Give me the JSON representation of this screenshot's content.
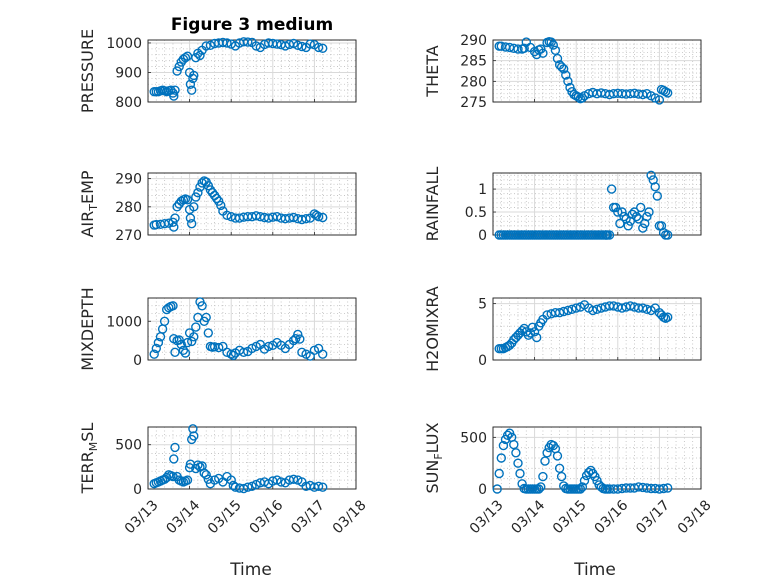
{
  "figure_title": "Figure 3 medium",
  "x_axis_label": "Time",
  "x_ticks": [
    "03/13",
    "03/14",
    "03/15",
    "03/16",
    "03/17",
    "03/18"
  ],
  "marker_color": "#0072BD",
  "chart_data": [
    {
      "type": "scatter",
      "name": "pressure",
      "ylabel_main": "PRESSURE",
      "ylabel_sub": "",
      "ylabel_tail": "",
      "xlim": [
        13.0,
        18.0
      ],
      "ylim": [
        800,
        1010
      ],
      "yticks": [
        800,
        900,
        1000
      ],
      "ytick_labels": [
        "800",
        "900",
        "1000"
      ],
      "x": [
        13.15,
        13.2,
        13.25,
        13.3,
        13.35,
        13.4,
        13.45,
        13.5,
        13.55,
        13.6,
        13.62,
        13.65,
        13.7,
        13.75,
        13.8,
        13.85,
        13.9,
        13.95,
        14.0,
        14.02,
        14.05,
        14.08,
        14.1,
        14.15,
        14.2,
        14.25,
        14.3,
        14.4,
        14.5,
        14.6,
        14.7,
        14.8,
        14.9,
        15.0,
        15.1,
        15.2,
        15.3,
        15.4,
        15.5,
        15.6,
        15.7,
        15.8,
        15.9,
        16.0,
        16.1,
        16.2,
        16.3,
        16.4,
        16.5,
        16.6,
        16.7,
        16.8,
        16.9,
        17.0,
        17.1,
        17.2
      ],
      "y": [
        835,
        835,
        835,
        838,
        840,
        838,
        835,
        838,
        840,
        830,
        820,
        840,
        905,
        920,
        935,
        945,
        950,
        955,
        900,
        860,
        840,
        880,
        890,
        950,
        965,
        958,
        975,
        990,
        992,
        998,
        1000,
        1002,
        1000,
        996,
        990,
        1000,
        1004,
        1003,
        1002,
        990,
        985,
        995,
        1000,
        998,
        996,
        994,
        990,
        995,
        998,
        992,
        988,
        985,
        996,
        994,
        985,
        982
      ]
    },
    {
      "type": "scatter",
      "name": "theta",
      "ylabel_main": "THETA",
      "ylabel_sub": "",
      "ylabel_tail": "",
      "xlim": [
        13.0,
        18.0
      ],
      "ylim": [
        275,
        290
      ],
      "yticks": [
        275,
        280,
        285,
        290
      ],
      "ytick_labels": [
        "275",
        "280",
        "285",
        "290"
      ],
      "x": [
        13.15,
        13.2,
        13.3,
        13.4,
        13.5,
        13.6,
        13.7,
        13.75,
        13.8,
        13.9,
        14.0,
        14.05,
        14.1,
        14.15,
        14.2,
        14.3,
        14.35,
        14.4,
        14.45,
        14.5,
        14.55,
        14.6,
        14.65,
        14.7,
        14.75,
        14.8,
        14.85,
        14.9,
        14.95,
        15.0,
        15.05,
        15.1,
        15.15,
        15.2,
        15.3,
        15.4,
        15.5,
        15.6,
        15.7,
        15.8,
        15.9,
        16.0,
        16.1,
        16.2,
        16.3,
        16.4,
        16.5,
        16.6,
        16.7,
        16.8,
        16.9,
        17.0,
        17.05,
        17.1,
        17.15,
        17.2
      ],
      "y": [
        288.5,
        288.5,
        288.3,
        288.2,
        288.0,
        287.8,
        287.8,
        288.0,
        289.5,
        288.2,
        287.2,
        286.5,
        287.6,
        287.8,
        286.8,
        289.4,
        289.6,
        289.5,
        288.8,
        287.5,
        285.5,
        284.0,
        283.5,
        283.0,
        281.5,
        280.0,
        278.5,
        277.5,
        276.8,
        276.5,
        276.2,
        275.8,
        276.0,
        276.5,
        277.0,
        277.3,
        277.0,
        277.2,
        277.0,
        276.8,
        277.0,
        277.1,
        277.0,
        276.9,
        277.0,
        277.1,
        276.9,
        276.8,
        277.0,
        276.5,
        276.0,
        275.5,
        278.0,
        277.8,
        277.5,
        277.2
      ]
    },
    {
      "type": "scatter",
      "name": "air_temp",
      "ylabel_main": "AIR",
      "ylabel_sub": "T",
      "ylabel_tail": "EMP",
      "xlim": [
        13.0,
        18.0
      ],
      "ylim": [
        270,
        292
      ],
      "yticks": [
        270,
        280,
        290
      ],
      "ytick_labels": [
        "270",
        "280",
        "290"
      ],
      "x": [
        13.15,
        13.2,
        13.3,
        13.4,
        13.5,
        13.6,
        13.62,
        13.65,
        13.7,
        13.75,
        13.8,
        13.85,
        13.9,
        13.95,
        14.0,
        14.02,
        14.05,
        14.1,
        14.15,
        14.2,
        14.25,
        14.3,
        14.35,
        14.4,
        14.45,
        14.5,
        14.55,
        14.6,
        14.65,
        14.7,
        14.75,
        14.8,
        14.9,
        15.0,
        15.1,
        15.2,
        15.3,
        15.4,
        15.5,
        15.6,
        15.7,
        15.8,
        15.9,
        16.0,
        16.1,
        16.2,
        16.3,
        16.4,
        16.5,
        16.6,
        16.7,
        16.8,
        16.9,
        17.0,
        17.05,
        17.1,
        17.2
      ],
      "y": [
        273.5,
        273.7,
        273.8,
        274.0,
        274.2,
        274.5,
        272.8,
        276.0,
        280.0,
        281.0,
        282.0,
        282.5,
        282.8,
        282.5,
        279.0,
        276.0,
        274.0,
        280.0,
        283.5,
        285.0,
        287.0,
        288.5,
        289.2,
        288.8,
        287.5,
        286.0,
        285.0,
        284.0,
        283.0,
        282.0,
        280.5,
        278.5,
        277.0,
        276.5,
        276.0,
        276.0,
        276.3,
        276.5,
        276.5,
        276.8,
        276.5,
        276.2,
        276.0,
        276.3,
        276.5,
        276.0,
        275.8,
        276.0,
        276.2,
        275.8,
        275.5,
        275.8,
        276.0,
        277.5,
        277.0,
        276.5,
        276.2
      ]
    },
    {
      "type": "scatter",
      "name": "rainfall",
      "ylabel_main": "RAINFALL",
      "ylabel_sub": "",
      "ylabel_tail": "",
      "xlim": [
        13.0,
        18.0
      ],
      "ylim": [
        0,
        1.35
      ],
      "yticks": [
        0,
        0.5,
        1
      ],
      "ytick_labels": [
        "0",
        "0.5",
        "1"
      ],
      "x": [
        13.15,
        13.2,
        13.25,
        13.3,
        13.35,
        13.4,
        13.45,
        13.5,
        13.55,
        13.6,
        13.65,
        13.7,
        13.75,
        13.8,
        13.85,
        13.9,
        13.95,
        14.0,
        14.05,
        14.1,
        14.15,
        14.2,
        14.25,
        14.3,
        14.35,
        14.4,
        14.45,
        14.5,
        14.55,
        14.6,
        14.65,
        14.7,
        14.75,
        14.8,
        14.85,
        14.9,
        14.95,
        15.0,
        15.05,
        15.1,
        15.15,
        15.2,
        15.25,
        15.3,
        15.35,
        15.4,
        15.45,
        15.5,
        15.55,
        15.6,
        15.65,
        15.7,
        15.72,
        15.75,
        15.8,
        15.85,
        15.9,
        15.95,
        16.0,
        16.05,
        16.1,
        16.15,
        16.2,
        16.25,
        16.3,
        16.35,
        16.4,
        16.45,
        16.5,
        16.55,
        16.6,
        16.65,
        16.7,
        16.75,
        16.8,
        16.85,
        16.9,
        16.95,
        17.0,
        17.05,
        17.1,
        17.15,
        17.2
      ],
      "y": [
        0,
        0,
        0,
        0,
        0,
        0,
        0,
        0,
        0,
        0,
        0,
        0,
        0,
        0,
        0,
        0,
        0,
        0,
        0,
        0,
        0,
        0,
        0,
        0,
        0,
        0,
        0,
        0,
        0,
        0,
        0,
        0,
        0,
        0,
        0,
        0,
        0,
        0,
        0,
        0,
        0,
        0,
        0,
        0,
        0,
        0,
        0,
        0,
        0,
        0,
        0,
        0,
        0,
        0,
        0,
        1.0,
        0.6,
        0.6,
        0.5,
        0.25,
        0.5,
        0.4,
        0.35,
        0.2,
        0.3,
        0.45,
        0.5,
        0.4,
        0.35,
        0.6,
        0.15,
        0.25,
        0.4,
        0.5,
        1.3,
        1.2,
        1.05,
        0.85,
        0.2,
        0.2,
        0.05,
        0.0,
        0.0
      ]
    },
    {
      "type": "scatter",
      "name": "mixdepth",
      "ylabel_main": "MIXDEPTH",
      "ylabel_sub": "",
      "ylabel_tail": "",
      "xlim": [
        13.0,
        18.0
      ],
      "ylim": [
        0,
        1600
      ],
      "yticks": [
        0,
        1000
      ],
      "ytick_labels": [
        "0",
        "1000"
      ],
      "x": [
        13.15,
        13.2,
        13.25,
        13.3,
        13.35,
        13.4,
        13.45,
        13.5,
        13.55,
        13.6,
        13.62,
        13.65,
        13.7,
        13.75,
        13.8,
        13.85,
        13.9,
        13.95,
        14.0,
        14.05,
        14.1,
        14.15,
        14.2,
        14.25,
        14.3,
        14.35,
        14.4,
        14.45,
        14.5,
        14.55,
        14.6,
        14.7,
        14.8,
        14.9,
        15.0,
        15.05,
        15.1,
        15.2,
        15.3,
        15.4,
        15.5,
        15.6,
        15.7,
        15.8,
        15.9,
        16.0,
        16.1,
        16.2,
        16.3,
        16.4,
        16.5,
        16.55,
        16.6,
        16.65,
        16.7,
        16.8,
        16.9,
        17.0,
        17.1,
        17.2
      ],
      "y": [
        150,
        300,
        450,
        600,
        800,
        1000,
        1300,
        1350,
        1380,
        1400,
        550,
        200,
        500,
        520,
        400,
        250,
        180,
        450,
        700,
        480,
        600,
        850,
        1100,
        1500,
        1400,
        1000,
        1100,
        700,
        350,
        330,
        340,
        320,
        350,
        200,
        150,
        120,
        180,
        250,
        200,
        220,
        300,
        350,
        400,
        280,
        350,
        380,
        450,
        380,
        300,
        400,
        500,
        550,
        660,
        540,
        200,
        150,
        100,
        250,
        300,
        150
      ]
    },
    {
      "type": "scatter",
      "name": "h2omixra",
      "ylabel_main": "H2OMIXRA",
      "ylabel_sub": "",
      "ylabel_tail": "",
      "xlim": [
        13.0,
        18.0
      ],
      "ylim": [
        0,
        5.5
      ],
      "yticks": [
        0,
        5
      ],
      "ytick_labels": [
        "0",
        "5"
      ],
      "x": [
        13.15,
        13.2,
        13.25,
        13.3,
        13.35,
        13.4,
        13.45,
        13.5,
        13.55,
        13.6,
        13.65,
        13.7,
        13.75,
        13.8,
        13.85,
        13.9,
        13.95,
        14.0,
        14.05,
        14.1,
        14.15,
        14.2,
        14.3,
        14.4,
        14.5,
        14.6,
        14.7,
        14.8,
        14.9,
        15.0,
        15.1,
        15.2,
        15.3,
        15.4,
        15.5,
        15.6,
        15.7,
        15.8,
        15.9,
        16.0,
        16.1,
        16.2,
        16.3,
        16.4,
        16.5,
        16.6,
        16.7,
        16.8,
        16.9,
        17.0,
        17.05,
        17.1,
        17.15,
        17.2
      ],
      "y": [
        1.0,
        1.0,
        1.0,
        1.1,
        1.2,
        1.3,
        1.5,
        1.8,
        2.0,
        2.2,
        2.4,
        2.6,
        2.8,
        2.5,
        2.2,
        2.4,
        2.9,
        2.5,
        2.0,
        3.0,
        3.3,
        3.6,
        4.0,
        4.1,
        4.2,
        4.2,
        4.3,
        4.4,
        4.5,
        4.6,
        4.7,
        4.9,
        4.6,
        4.4,
        4.5,
        4.6,
        4.7,
        4.8,
        4.8,
        4.7,
        4.6,
        4.7,
        4.8,
        4.7,
        4.6,
        4.6,
        4.5,
        4.4,
        4.6,
        4.2,
        4.0,
        3.8,
        3.7,
        3.8
      ]
    },
    {
      "type": "scatter",
      "name": "terr_msl",
      "ylabel_main": "TERR",
      "ylabel_sub": "M",
      "ylabel_tail": "SL",
      "xlim": [
        13.0,
        18.0
      ],
      "ylim": [
        0,
        700
      ],
      "yticks": [
        0,
        500
      ],
      "ytick_labels": [
        "0",
        "500"
      ],
      "x": [
        13.15,
        13.2,
        13.25,
        13.3,
        13.35,
        13.4,
        13.45,
        13.5,
        13.55,
        13.6,
        13.62,
        13.65,
        13.7,
        13.75,
        13.8,
        13.85,
        13.9,
        13.95,
        14.0,
        14.02,
        14.05,
        14.08,
        14.1,
        14.15,
        14.2,
        14.25,
        14.3,
        14.35,
        14.4,
        14.45,
        14.5,
        14.6,
        14.7,
        14.8,
        14.9,
        15.0,
        15.05,
        15.1,
        15.2,
        15.3,
        15.4,
        15.5,
        15.6,
        15.7,
        15.8,
        15.9,
        16.0,
        16.1,
        16.2,
        16.3,
        16.4,
        16.5,
        16.6,
        16.7,
        16.8,
        16.9,
        17.0,
        17.1,
        17.2
      ],
      "y": [
        60,
        70,
        80,
        90,
        100,
        110,
        130,
        160,
        150,
        140,
        340,
        470,
        140,
        100,
        90,
        80,
        90,
        100,
        240,
        280,
        560,
        680,
        600,
        230,
        270,
        250,
        260,
        180,
        160,
        110,
        60,
        100,
        120,
        80,
        140,
        100,
        40,
        20,
        10,
        5,
        20,
        30,
        50,
        70,
        80,
        60,
        90,
        100,
        80,
        70,
        100,
        110,
        100,
        80,
        30,
        40,
        20,
        30,
        20
      ]
    },
    {
      "type": "scatter",
      "name": "sun_flux",
      "ylabel_main": "SUN",
      "ylabel_sub": "F",
      "ylabel_tail": "LUX",
      "xlim": [
        13.0,
        18.0
      ],
      "ylim": [
        0,
        600
      ],
      "yticks": [
        0,
        500
      ],
      "ytick_labels": [
        "0",
        "500"
      ],
      "x": [
        13.1,
        13.15,
        13.2,
        13.25,
        13.3,
        13.35,
        13.4,
        13.45,
        13.5,
        13.55,
        13.6,
        13.65,
        13.7,
        13.75,
        13.8,
        13.85,
        13.9,
        13.95,
        14.0,
        14.05,
        14.1,
        14.15,
        14.2,
        14.25,
        14.3,
        14.35,
        14.4,
        14.45,
        14.5,
        14.55,
        14.6,
        14.65,
        14.7,
        14.75,
        14.8,
        14.85,
        14.9,
        14.95,
        15.0,
        15.05,
        15.1,
        15.15,
        15.2,
        15.25,
        15.3,
        15.35,
        15.4,
        15.45,
        15.5,
        15.55,
        15.6,
        15.65,
        15.7,
        15.75,
        15.8,
        15.9,
        16.0,
        16.1,
        16.2,
        16.3,
        16.4,
        16.5,
        16.6,
        16.7,
        16.8,
        16.9,
        17.0,
        17.1,
        17.2
      ],
      "y": [
        0,
        150,
        300,
        420,
        480,
        520,
        540,
        500,
        430,
        350,
        250,
        150,
        50,
        5,
        0,
        0,
        0,
        0,
        0,
        0,
        0,
        20,
        120,
        270,
        350,
        400,
        430,
        420,
        390,
        320,
        200,
        120,
        30,
        5,
        0,
        0,
        0,
        0,
        0,
        0,
        0,
        20,
        80,
        130,
        160,
        180,
        150,
        120,
        80,
        40,
        20,
        5,
        0,
        0,
        0,
        0,
        0,
        5,
        10,
        10,
        10,
        20,
        15,
        10,
        5,
        5,
        0,
        5,
        10
      ]
    }
  ]
}
